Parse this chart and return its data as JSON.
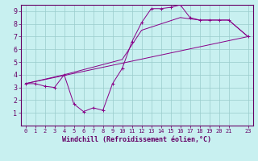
{
  "xlabel": "Windchill (Refroidissement éolien,°C)",
  "bg_color": "#c8f0f0",
  "line_color": "#880088",
  "grid_color": "#99cccc",
  "xlim": [
    -0.5,
    23.5
  ],
  "ylim": [
    0,
    9.5
  ],
  "xticks": [
    0,
    1,
    2,
    3,
    4,
    5,
    6,
    7,
    8,
    9,
    10,
    11,
    12,
    13,
    14,
    15,
    16,
    17,
    18,
    19,
    20,
    21,
    23
  ],
  "yticks": [
    1,
    2,
    3,
    4,
    5,
    6,
    7,
    8,
    9
  ],
  "line1_x": [
    0,
    1,
    2,
    3,
    4,
    5,
    6,
    7,
    8,
    9,
    10,
    11,
    12,
    13,
    14,
    15,
    16,
    17,
    18,
    19,
    20,
    21,
    23
  ],
  "line1_y": [
    3.3,
    3.3,
    3.1,
    3.0,
    4.0,
    1.7,
    1.1,
    1.4,
    1.2,
    3.3,
    4.5,
    6.6,
    8.1,
    9.2,
    9.2,
    9.3,
    9.5,
    8.5,
    8.3,
    8.3,
    8.3,
    8.3,
    7.0
  ],
  "line2_x": [
    0,
    23
  ],
  "line2_y": [
    3.3,
    7.0
  ],
  "line3_x": [
    0,
    4,
    10,
    12,
    16,
    18,
    21,
    23
  ],
  "line3_y": [
    3.3,
    4.0,
    5.2,
    7.5,
    8.5,
    8.3,
    8.3,
    7.0
  ],
  "xlabel_fontsize": 6,
  "tick_fontsize_x": 5,
  "tick_fontsize_y": 6
}
